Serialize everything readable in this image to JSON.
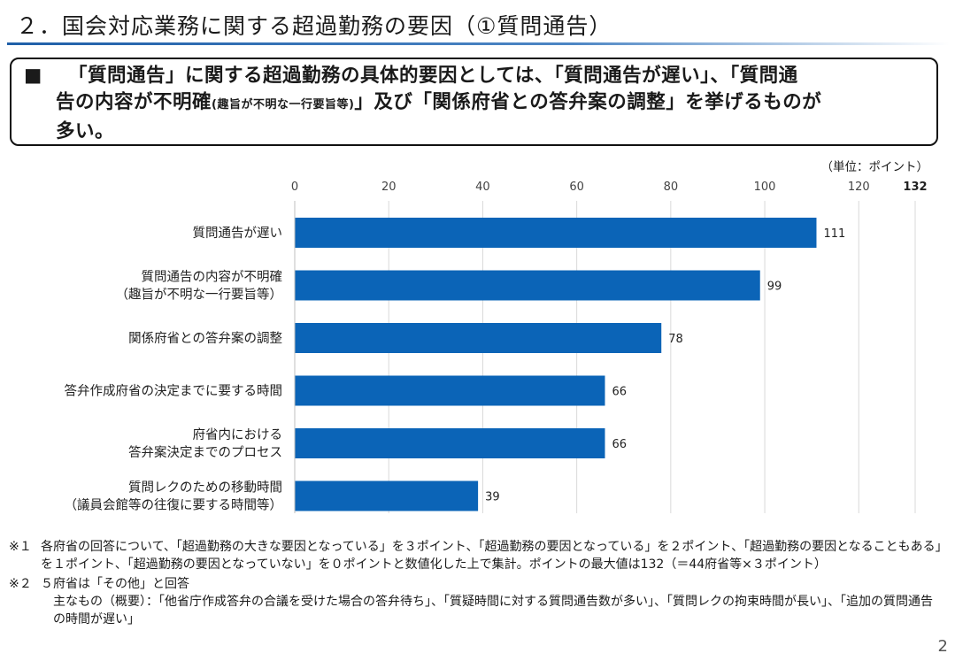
{
  "title": "２．国会対応業務に関する超過勤務の要因（①質問通告）",
  "summary": {
    "bullet": "■",
    "line1": "「質問通告」に関する超過勤務の具体的要因としては、「質問通告が遅い」、「質問通",
    "line2_a": "告の内容が不明確",
    "line2_small": "(趣旨が不明な一行要旨等)",
    "line2_b": "」及び「関係府省との答弁案の調整」を挙げるものが",
    "line3": "多い。"
  },
  "unit_label": "（単位：ポイント）",
  "chart_data": {
    "type": "bar",
    "orientation": "horizontal",
    "categories": [
      [
        "質問通告が遅い"
      ],
      [
        "質問通告の内容が不明確",
        "（趣旨が不明な一行要旨等）"
      ],
      [
        "関係府省との答弁案の調整"
      ],
      [
        "答弁作成府省の決定までに要する時間"
      ],
      [
        "府省内における",
        "答弁案決定までのプロセス"
      ],
      [
        "質問レクのための移動時間",
        "（議員会館等の往復に要する時間等）"
      ]
    ],
    "values": [
      111,
      99,
      78,
      66,
      66,
      39
    ],
    "xticks": [
      0,
      20,
      40,
      60,
      80,
      100,
      120
    ],
    "xtick_labels": [
      "0",
      "20",
      "40",
      "60",
      "80",
      "100",
      "120"
    ],
    "max_label": "132",
    "xlim": [
      0,
      132
    ],
    "bar_color": "#0b64b7",
    "grid": true
  },
  "notes": [
    {
      "mark": "※１",
      "text": "各府省の回答について、「超過勤務の大きな要因となっている」を３ポイント、「超過勤務の要因となっている」を２ポイント、「超過勤務の要因となることもある」を１ポイント、「超過勤務の要因となっていない」を０ポイントと数値化した上で集計。ポイントの最大値は132（＝44府省等×３ポイント）"
    },
    {
      "mark": "※２",
      "text": "５府省は「その他」と回答",
      "sub": "主なもの（概要）：「他省庁作成答弁の合議を受けた場合の答弁待ち」、「質疑時間に対する質問通告数が多い」、「質問レクの拘束時間が長い」、「追加の質問通告の時間が遅い」"
    }
  ],
  "page_number": "2"
}
